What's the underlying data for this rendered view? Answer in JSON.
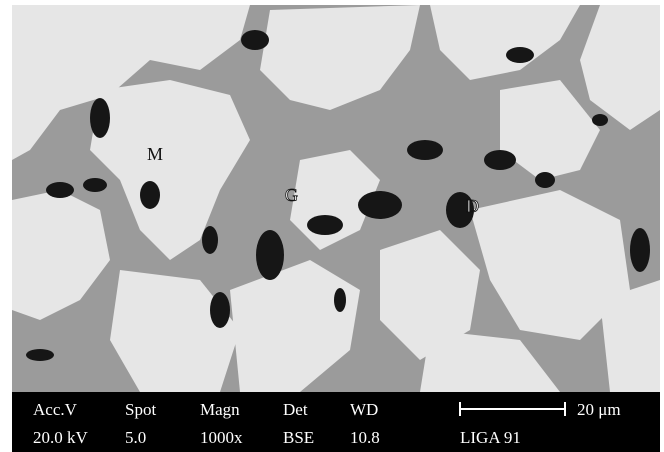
{
  "labels": [
    "M",
    "G",
    "D"
  ],
  "info_bar": {
    "columns": [
      {
        "header": "Acc.V",
        "value": "20.0 kV"
      },
      {
        "header": "Spot",
        "value": "5.0"
      },
      {
        "header": "Magn",
        "value": "1000x"
      },
      {
        "header": "Det",
        "value": "BSE"
      },
      {
        "header": "WD",
        "value": "10.8"
      }
    ],
    "scale_bar": "20 μm",
    "sample": "LIGA 91"
  }
}
